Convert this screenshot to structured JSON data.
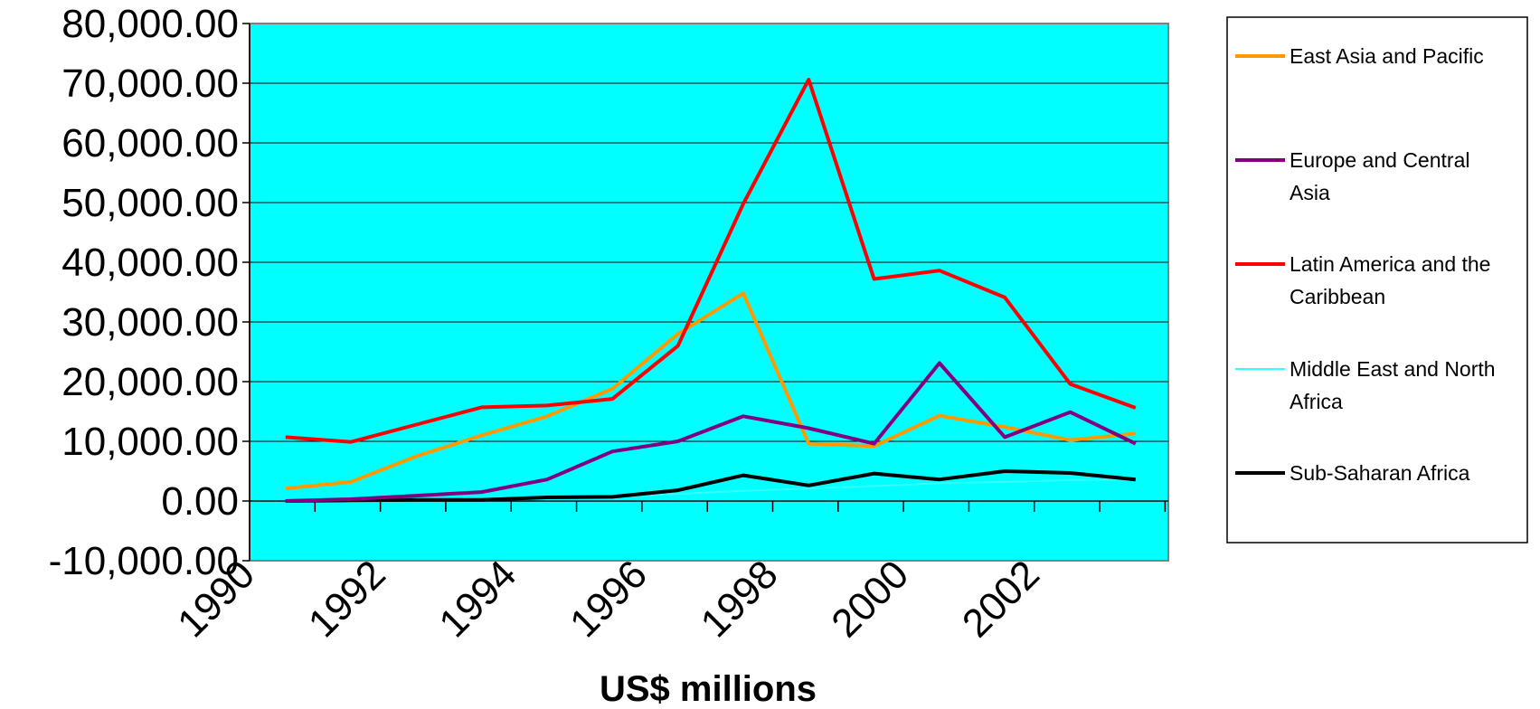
{
  "chart_data": {
    "type": "line",
    "title": "",
    "xlabel": "US$ millions",
    "ylabel": "",
    "ylim": [
      -10000,
      80000
    ],
    "y_ticks": [
      -10000,
      0,
      10000,
      20000,
      30000,
      40000,
      50000,
      60000,
      70000,
      80000
    ],
    "y_tick_labels": [
      "-10,000.00",
      "0.00",
      "10,000.00",
      "20,000.00",
      "30,000.00",
      "40,000.00",
      "50,000.00",
      "60,000.00",
      "70,000.00",
      "80,000.00"
    ],
    "x_tick_labels": [
      "1990",
      "1992",
      "1994",
      "1996",
      "1998",
      "2000",
      "2002"
    ],
    "x_categories": [
      "1990",
      "1991",
      "1992",
      "1993",
      "1994",
      "1995",
      "1996",
      "1997",
      "1998",
      "1999",
      "2000",
      "2001",
      "2002",
      "2003"
    ],
    "grid": true,
    "legend_position": "right",
    "plot_background": "#00ffff",
    "series": [
      {
        "name": "East Asia and Pacific",
        "color": "#ff9900",
        "values": [
          2100,
          3200,
          7500,
          11000,
          14200,
          18800,
          28000,
          34800,
          9600,
          9200,
          14300,
          12400,
          10200,
          11300
        ]
      },
      {
        "name": "Europe and Central Asia",
        "color": "#800080",
        "values": [
          0,
          300,
          900,
          1500,
          3600,
          8300,
          10000,
          14200,
          12200,
          9600,
          23100,
          10700,
          14900,
          9600
        ]
      },
      {
        "name": "Latin America and the Caribbean",
        "color": "#ff0000",
        "values": [
          10700,
          9900,
          12800,
          15700,
          16000,
          17100,
          26000,
          49800,
          70600,
          37200,
          38600,
          34100,
          19600,
          15600
        ]
      },
      {
        "name": "Middle East and North Africa",
        "color": "#33ffff",
        "values": [
          0,
          100,
          200,
          400,
          700,
          700,
          1200,
          1700,
          2100,
          2500,
          3000,
          3200,
          3500,
          3600
        ]
      },
      {
        "name": "Sub-Saharan Africa",
        "color": "#000000",
        "values": [
          0,
          100,
          200,
          200,
          600,
          700,
          1800,
          4300,
          2600,
          4600,
          3600,
          5000,
          4700,
          3600
        ]
      }
    ]
  }
}
